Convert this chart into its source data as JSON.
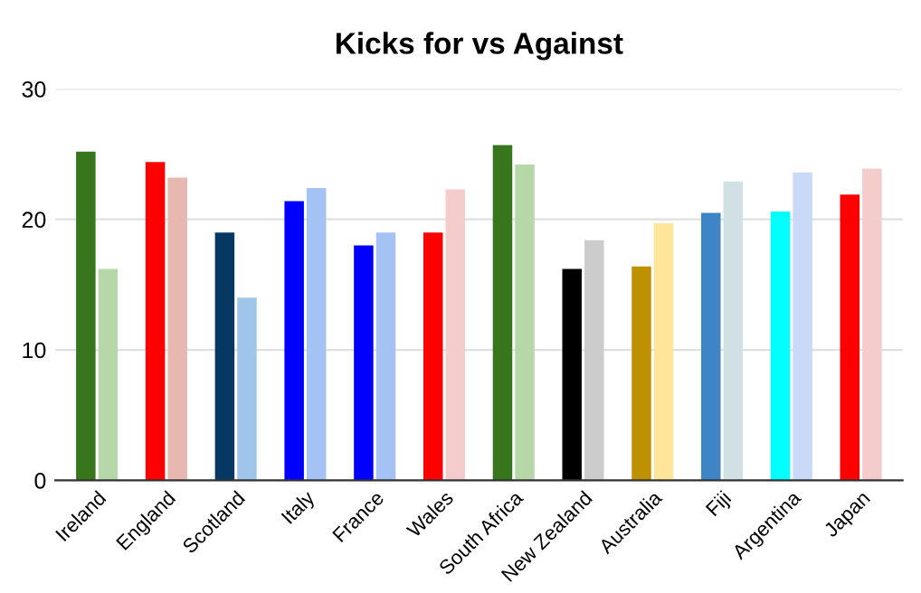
{
  "chart_data": {
    "type": "bar",
    "title": "Kicks for vs Against",
    "categories": [
      "Ireland",
      "England",
      "Scotland",
      "Italy",
      "France",
      "Wales",
      "South Africa",
      "New Zealand",
      "Australia",
      "Fiji",
      "Argentina",
      "Japan"
    ],
    "series": [
      {
        "colors": [
          "#38761d",
          "#ff0000",
          "#073763",
          "#0000ff",
          "#0000ff",
          "#ff0000",
          "#38761d",
          "#000000",
          "#bf9000",
          "#3d85c6",
          "#00ffff",
          "#ff0000"
        ],
        "values": [
          25.2,
          24.4,
          19.0,
          21.4,
          18.0,
          19.0,
          25.7,
          16.2,
          16.4,
          20.5,
          20.6,
          21.9
        ]
      },
      {
        "colors": [
          "#b6d7a8",
          "#e6b8af",
          "#9fc5e8",
          "#a4c2f4",
          "#a4c2f4",
          "#f4cccc",
          "#b6d7a8",
          "#cccccc",
          "#ffe599",
          "#d0e0e3",
          "#c9daf8",
          "#f4cccc"
        ],
        "values": [
          16.2,
          23.2,
          14.0,
          22.4,
          19.0,
          22.3,
          24.2,
          18.4,
          19.7,
          22.9,
          23.6,
          23.9
        ]
      }
    ],
    "ylim": [
      0,
      30
    ],
    "yticks": [
      0,
      10,
      20,
      30
    ],
    "grid": "y"
  }
}
